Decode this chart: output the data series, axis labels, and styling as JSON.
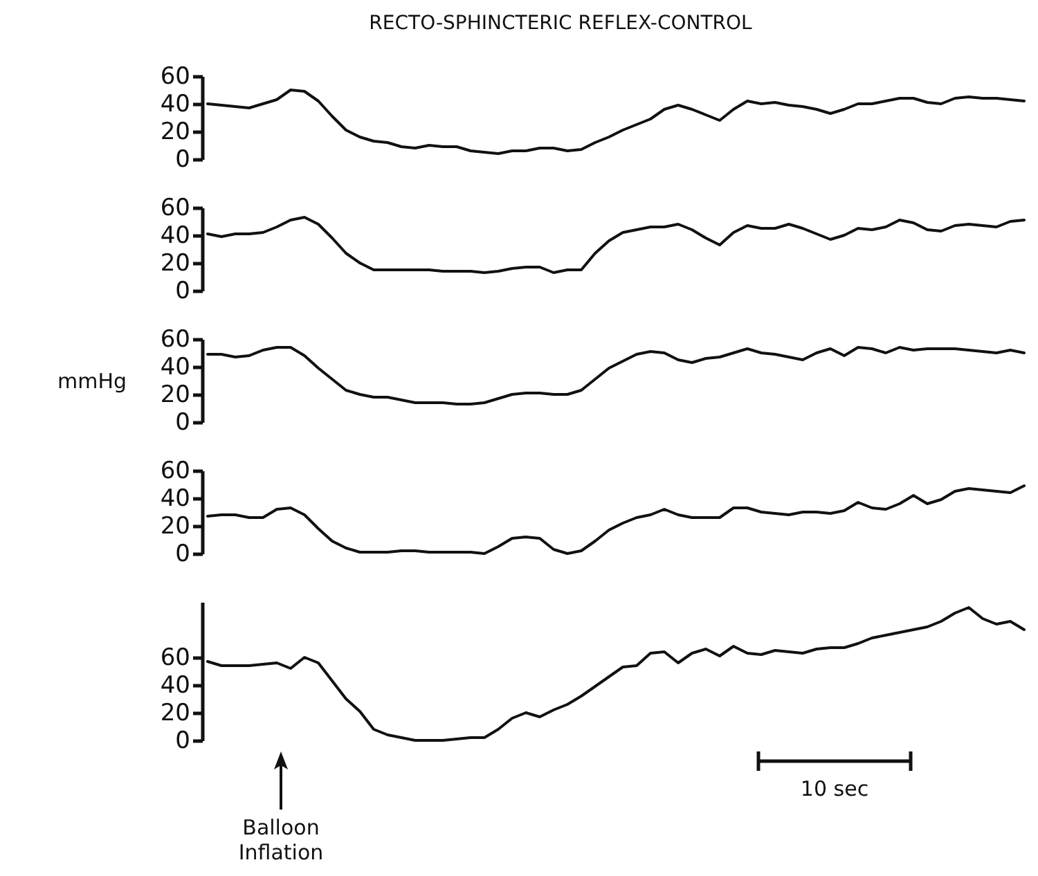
{
  "chart_data": [
    {
      "type": "line",
      "title": "RECTO-SPHINCTERIC          REFLEX-CONTROL",
      "color": "#111111",
      "tick_labels": "y",
      "grid": false,
      "line_style": "solid",
      "ylim": [
        0,
        60
      ],
      "yticks": [
        0,
        20,
        40,
        60
      ],
      "categories": [
        null,
        null,
        null,
        null,
        null,
        null,
        null,
        null,
        null,
        null,
        null,
        null,
        null,
        null,
        null,
        null,
        null,
        null,
        null,
        null,
        null,
        null,
        null,
        null,
        null,
        null,
        null,
        null,
        null,
        null,
        null,
        null,
        null,
        null,
        null,
        null,
        null,
        null,
        null,
        null,
        null,
        null,
        null,
        null,
        null,
        null,
        null,
        null,
        null,
        null,
        null,
        null,
        null,
        null,
        null,
        null,
        null,
        null,
        null,
        null
      ],
      "values": [
        40,
        39,
        38,
        37,
        40,
        43,
        50,
        49,
        42,
        31,
        21,
        16,
        13,
        12,
        9,
        8,
        10,
        9,
        9,
        6,
        5,
        4,
        6,
        6,
        8,
        8,
        6,
        7,
        12,
        16,
        21,
        25,
        29,
        36,
        39,
        36,
        32,
        28,
        36,
        42,
        40,
        41,
        39,
        38,
        36,
        33,
        36,
        40,
        40,
        42,
        44,
        44,
        41,
        40,
        44,
        45,
        44,
        44,
        43,
        42
      ]
    },
    {
      "type": "line",
      "color": "#111111",
      "tick_labels": "y",
      "grid": false,
      "line_style": "solid",
      "ylim": [
        0,
        60
      ],
      "yticks": [
        0,
        20,
        40,
        60
      ],
      "categories": [
        null,
        null,
        null,
        null,
        null,
        null,
        null,
        null,
        null,
        null,
        null,
        null,
        null,
        null,
        null,
        null,
        null,
        null,
        null,
        null,
        null,
        null,
        null,
        null,
        null,
        null,
        null,
        null,
        null,
        null,
        null,
        null,
        null,
        null,
        null,
        null,
        null,
        null,
        null,
        null,
        null,
        null,
        null,
        null,
        null,
        null,
        null,
        null,
        null,
        null,
        null,
        null,
        null,
        null,
        null,
        null,
        null,
        null,
        null,
        null
      ],
      "values": [
        41,
        39,
        41,
        41,
        42,
        46,
        51,
        53,
        48,
        38,
        27,
        20,
        15,
        15,
        15,
        15,
        15,
        14,
        14,
        14,
        13,
        14,
        16,
        17,
        17,
        13,
        15,
        15,
        27,
        36,
        42,
        44,
        46,
        46,
        48,
        44,
        38,
        33,
        42,
        47,
        45,
        45,
        48,
        45,
        41,
        37,
        40,
        45,
        44,
        46,
        51,
        49,
        44,
        43,
        47,
        48,
        47,
        46,
        50,
        51
      ]
    },
    {
      "type": "line",
      "color": "#111111",
      "tick_labels": "y",
      "grid": false,
      "line_style": "solid",
      "ylim": [
        0,
        60
      ],
      "yticks": [
        0,
        20,
        40,
        60
      ],
      "ylabel": "mmHg",
      "categories": [
        null,
        null,
        null,
        null,
        null,
        null,
        null,
        null,
        null,
        null,
        null,
        null,
        null,
        null,
        null,
        null,
        null,
        null,
        null,
        null,
        null,
        null,
        null,
        null,
        null,
        null,
        null,
        null,
        null,
        null,
        null,
        null,
        null,
        null,
        null,
        null,
        null,
        null,
        null,
        null,
        null,
        null,
        null,
        null,
        null,
        null,
        null,
        null,
        null,
        null,
        null,
        null,
        null,
        null,
        null,
        null,
        null,
        null,
        null,
        null
      ],
      "values": [
        49,
        49,
        47,
        48,
        52,
        54,
        54,
        48,
        39,
        31,
        23,
        20,
        18,
        18,
        16,
        14,
        14,
        14,
        13,
        13,
        14,
        17,
        20,
        21,
        21,
        20,
        20,
        23,
        31,
        39,
        44,
        49,
        51,
        50,
        45,
        43,
        46,
        47,
        50,
        53,
        50,
        49,
        47,
        45,
        50,
        53,
        48,
        54,
        53,
        50,
        54,
        52,
        53,
        53,
        53,
        52,
        51,
        50,
        52,
        50
      ]
    },
    {
      "type": "line",
      "color": "#111111",
      "tick_labels": "y",
      "grid": false,
      "line_style": "solid",
      "ylim": [
        0,
        60
      ],
      "yticks": [
        0,
        20,
        40,
        60
      ],
      "categories": [
        null,
        null,
        null,
        null,
        null,
        null,
        null,
        null,
        null,
        null,
        null,
        null,
        null,
        null,
        null,
        null,
        null,
        null,
        null,
        null,
        null,
        null,
        null,
        null,
        null,
        null,
        null,
        null,
        null,
        null,
        null,
        null,
        null,
        null,
        null,
        null,
        null,
        null,
        null,
        null,
        null,
        null,
        null,
        null,
        null,
        null,
        null,
        null,
        null,
        null,
        null,
        null,
        null,
        null,
        null,
        null,
        null,
        null,
        null,
        null
      ],
      "values": [
        27,
        28,
        28,
        26,
        26,
        32,
        33,
        28,
        18,
        9,
        4,
        1,
        1,
        1,
        2,
        2,
        1,
        1,
        1,
        1,
        0,
        5,
        11,
        12,
        11,
        3,
        0,
        2,
        9,
        17,
        22,
        26,
        28,
        32,
        28,
        26,
        26,
        26,
        33,
        33,
        30,
        29,
        28,
        30,
        30,
        29,
        31,
        37,
        33,
        32,
        36,
        42,
        36,
        39,
        45,
        47,
        46,
        45,
        44,
        49
      ]
    },
    {
      "type": "line",
      "color": "#111111",
      "tick_labels": "y",
      "grid": false,
      "line_style": "solid",
      "ylim": [
        0,
        100
      ],
      "yticks": [
        0,
        20,
        40,
        60
      ],
      "categories": [
        null,
        null,
        null,
        null,
        null,
        null,
        null,
        null,
        null,
        null,
        null,
        null,
        null,
        null,
        null,
        null,
        null,
        null,
        null,
        null,
        null,
        null,
        null,
        null,
        null,
        null,
        null,
        null,
        null,
        null,
        null,
        null,
        null,
        null,
        null,
        null,
        null,
        null,
        null,
        null,
        null,
        null,
        null,
        null,
        null,
        null,
        null,
        null,
        null,
        null,
        null,
        null,
        null,
        null,
        null,
        null,
        null,
        null,
        null,
        null
      ],
      "values": [
        57,
        54,
        54,
        54,
        55,
        56,
        52,
        60,
        56,
        43,
        30,
        21,
        8,
        4,
        2,
        0,
        0,
        0,
        1,
        2,
        2,
        8,
        16,
        20,
        17,
        22,
        26,
        32,
        39,
        46,
        53,
        54,
        63,
        64,
        56,
        63,
        66,
        61,
        68,
        63,
        62,
        65,
        64,
        63,
        66,
        67,
        67,
        70,
        74,
        76,
        78,
        80,
        82,
        86,
        92,
        96,
        88,
        84,
        86,
        80
      ],
      "annotations": [
        "Balloon Inflation",
        "10 sec"
      ]
    }
  ]
}
